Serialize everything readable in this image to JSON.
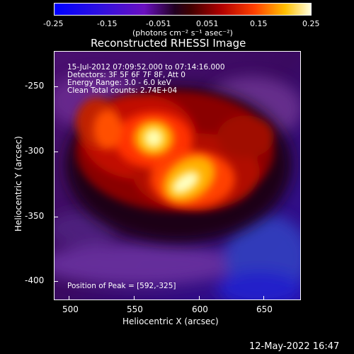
{
  "colorbar": {
    "tick_labels": [
      "-0.25",
      "-0.15",
      "-0.051",
      "0.051",
      "0.15",
      "0.25"
    ],
    "unit_label": "(photons cm⁻² s⁻¹ asec⁻²)",
    "min": -0.25,
    "max": 0.25
  },
  "plot": {
    "title": "Reconstructed RHESSI Image",
    "xlabel": "Heliocentric X (arcsec)",
    "ylabel": "Heliocentric Y (arcsec)",
    "x_ticks": [
      "500",
      "550",
      "600",
      "650"
    ],
    "y_ticks": [
      "-250",
      "-300",
      "-350",
      "-400"
    ],
    "x_range": [
      489,
      683
    ],
    "y_range": [
      -260,
      -423
    ]
  },
  "annotations": {
    "time": "15-Jul-2012 07:09:52.000 to 07:14:16.000",
    "detectors": "Detectors: 3F 5F 6F 7F 8F, Att 0",
    "energy": "Energy Range: 3.0 - 6.0 keV",
    "clean": "Clean     Total counts: 2.74E+04",
    "peak": "Position of Peak = [592,-325]"
  },
  "footer": {
    "timestamp": "12-May-2022 16:47"
  },
  "colors": {
    "background": "#000000",
    "text": "#ffffff"
  }
}
